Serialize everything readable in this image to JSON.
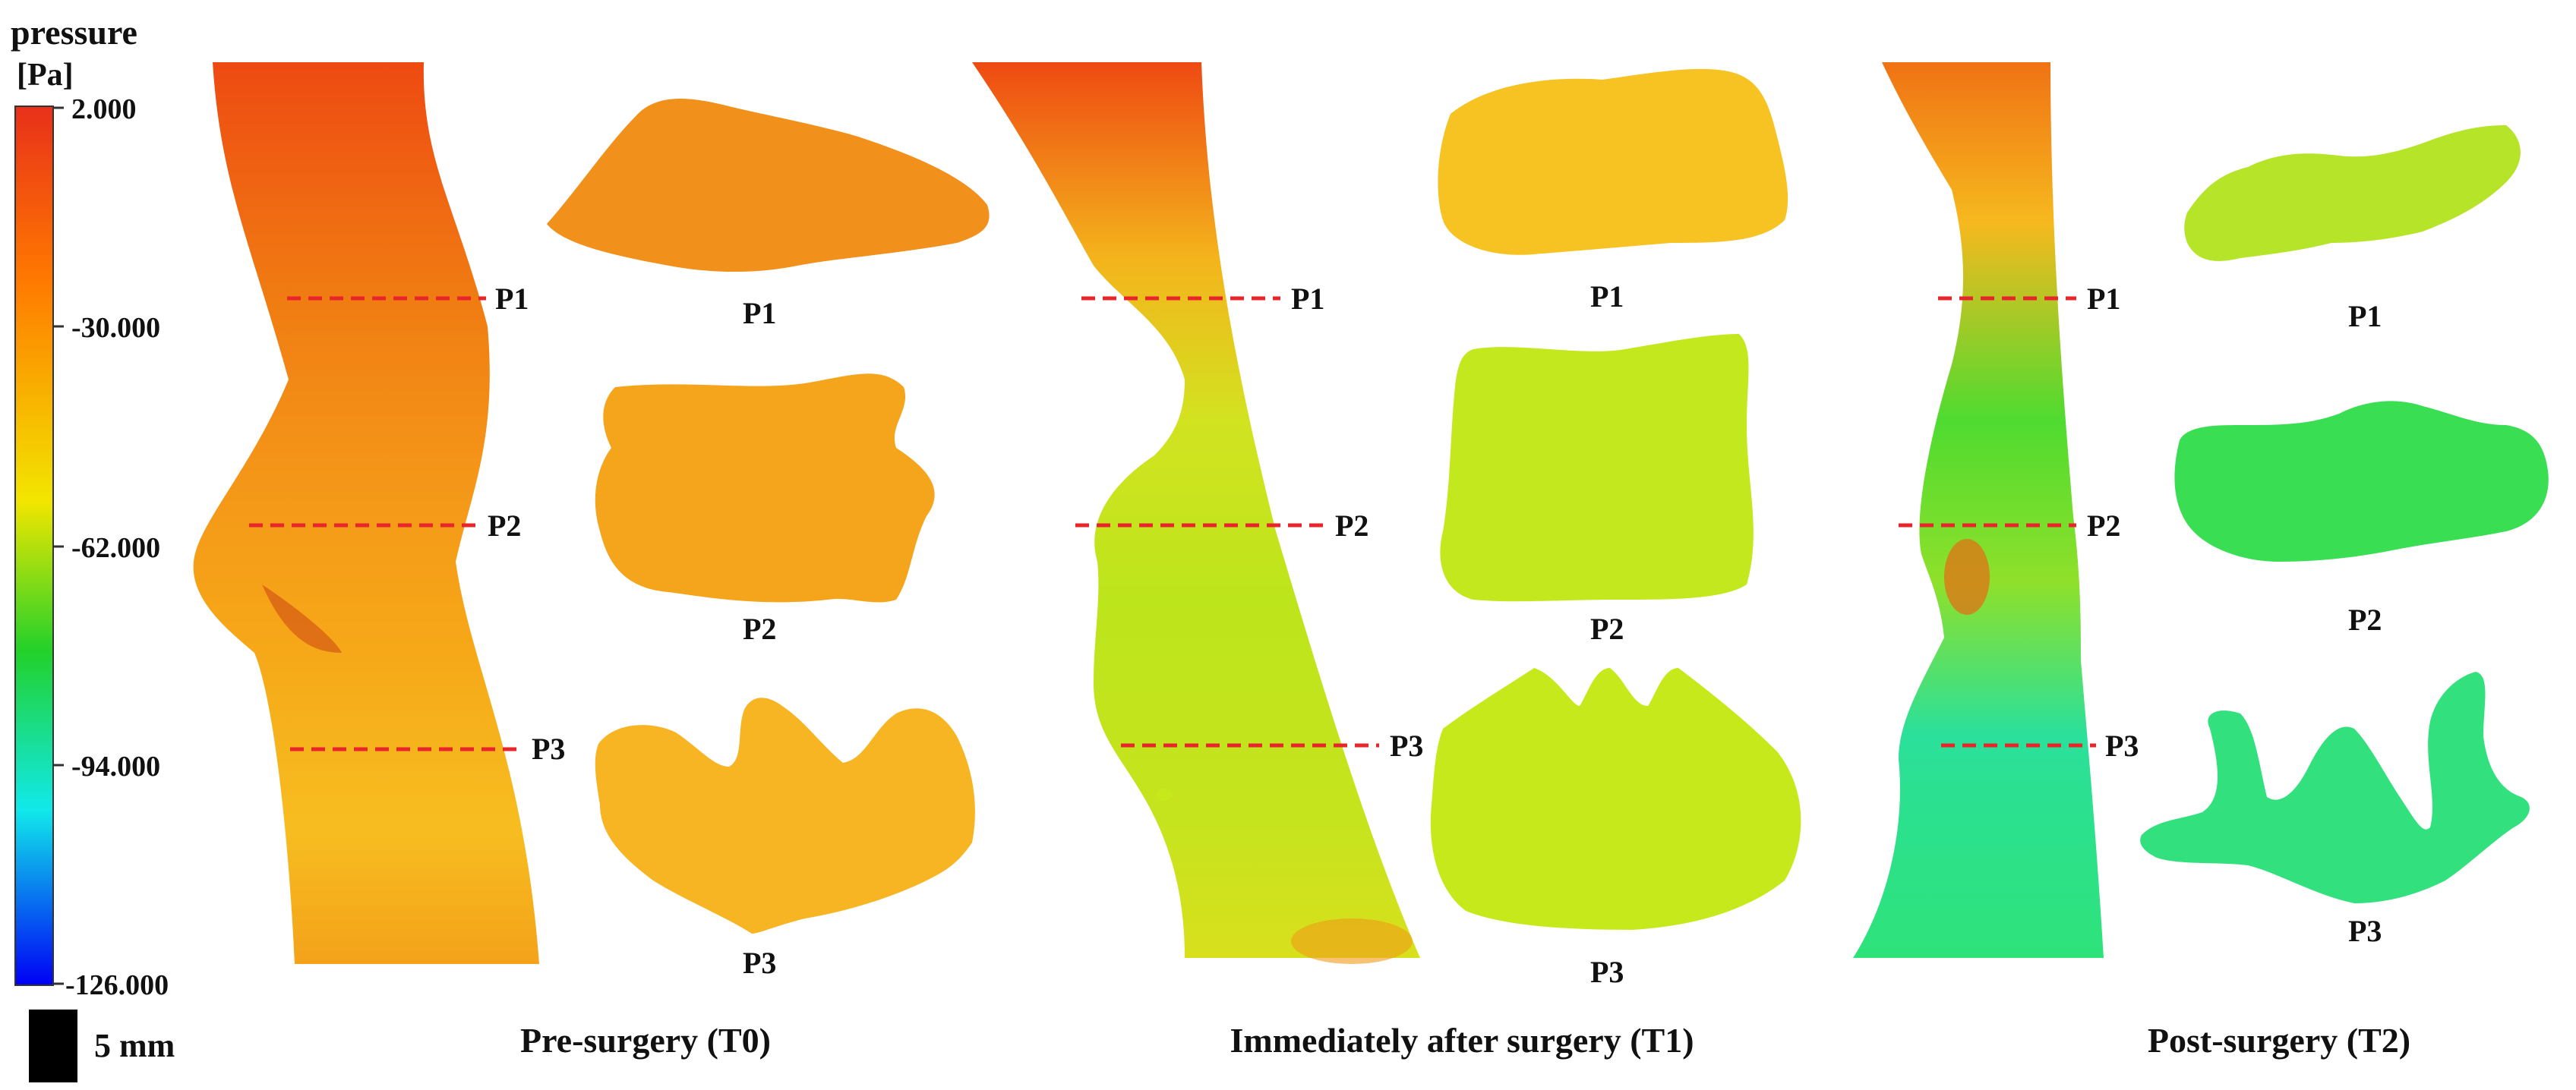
{
  "legend": {
    "title_line1": "pressure",
    "title_line2": "[Pa]",
    "ticks": [
      "2.000",
      "-30.000",
      "-62.000",
      "-94.000",
      "-126.000"
    ],
    "colors": [
      "#e8301a",
      "#ff7a00",
      "#f2e600",
      "#22d12a",
      "#11e9ea",
      "#0000f5"
    ]
  },
  "scale_bar": {
    "label": "5 mm",
    "color": "#000000"
  },
  "section_labels": [
    "P1",
    "P2",
    "P3"
  ],
  "panels": [
    {
      "title": "Pre-surgery (T0)",
      "airway_colors": [
        "#ee4a12",
        "#f07a12",
        "#f49518",
        "#f6a818",
        "#f7bd20",
        "#f4a21a"
      ],
      "slice_colors": [
        "#f2901c",
        "#f5a51c",
        "#f7b523"
      ]
    },
    {
      "title": "Immediately after surgery (T1)",
      "airway_colors": [
        "#ee4a12",
        "#f4b41c",
        "#d2e320",
        "#bde51c",
        "#c6e41e",
        "#d8e01c"
      ],
      "slice_colors": [
        "#f6c322",
        "#c4e81e",
        "#c6e91c"
      ]
    },
    {
      "title": "Post-surgery (T2)",
      "airway_colors": [
        "#f07214",
        "#f6b91e",
        "#4fdb30",
        "#8fe02a",
        "#2be09a",
        "#2ee27a"
      ],
      "slice_colors": [
        "#b6e428",
        "#39de52",
        "#33e07e"
      ]
    }
  ]
}
